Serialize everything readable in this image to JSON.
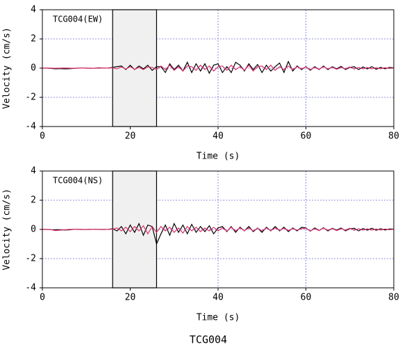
{
  "chart_data": [
    {
      "type": "line",
      "label": "TCG004(EW)",
      "xlabel": "Time (s)",
      "ylabel": "Velocity (cm/s)",
      "xlim": [
        0,
        80
      ],
      "ylim": [
        -4,
        4
      ],
      "xticks": [
        0,
        20,
        40,
        60,
        80
      ],
      "yticks": [
        -4,
        -2,
        0,
        2,
        4
      ],
      "grid": true,
      "shaded_span": [
        16,
        26
      ],
      "x": [
        0,
        1,
        2,
        3,
        4,
        5,
        6,
        7,
        8,
        9,
        10,
        11,
        12,
        13,
        14,
        15,
        16,
        17,
        18,
        19,
        20,
        21,
        22,
        23,
        24,
        25,
        26,
        27,
        28,
        29,
        30,
        31,
        32,
        33,
        34,
        35,
        36,
        37,
        38,
        39,
        40,
        41,
        42,
        43,
        44,
        45,
        46,
        47,
        48,
        49,
        50,
        51,
        52,
        53,
        54,
        55,
        56,
        57,
        58,
        59,
        60,
        61,
        62,
        63,
        64,
        65,
        66,
        67,
        68,
        69,
        70,
        71,
        72,
        73,
        74,
        75,
        76,
        77,
        78,
        79,
        80
      ],
      "series": [
        {
          "color": "#000000",
          "values": [
            0,
            0,
            -0.02,
            -0.05,
            -0.03,
            -0.05,
            -0.04,
            -0.02,
            0,
            0.01,
            0,
            -0.01,
            0,
            0.02,
            0,
            0.01,
            0.05,
            0.1,
            0.15,
            -0.1,
            0.2,
            -0.1,
            0.15,
            -0.05,
            0.2,
            -0.15,
            0.1,
            0.1,
            -0.3,
            0.3,
            -0.1,
            0.2,
            -0.2,
            0.4,
            -0.3,
            0.3,
            -0.2,
            0.3,
            -0.35,
            0.2,
            0.3,
            -0.3,
            0.1,
            -0.3,
            0.4,
            0.2,
            -0.2,
            0.3,
            -0.1,
            0.25,
            -0.3,
            0.2,
            -0.2,
            0.1,
            0.35,
            -0.3,
            0.45,
            -0.2,
            0.15,
            -0.1,
            0.1,
            -0.15,
            0.1,
            -0.1,
            0.15,
            -0.1,
            0.1,
            -0.05,
            0.12,
            -0.1,
            0.05,
            0.1,
            -0.1,
            0.08,
            -0.05,
            0.1,
            -0.08,
            0.05,
            -0.05,
            0.05,
            0.02
          ]
        },
        {
          "color": "#e0306a",
          "values": [
            0,
            0.01,
            0,
            -0.01,
            0,
            0.01,
            0,
            -0.01,
            0,
            0.01,
            0,
            0,
            -0.01,
            0,
            0.01,
            0,
            0.02,
            -0.05,
            0.08,
            -0.06,
            0.1,
            -0.08,
            0.05,
            -0.1,
            0.08,
            0.05,
            -0.1,
            0.15,
            -0.1,
            0.2,
            -0.15,
            0.1,
            -0.2,
            0.15,
            0.1,
            -0.15,
            0.2,
            -0.1,
            0.15,
            -0.2,
            0.1,
            0.15,
            -0.15,
            0.2,
            -0.1,
            0.1,
            -0.15,
            0.2,
            -0.2,
            0.1,
            0.15,
            -0.1,
            0.2,
            -0.15,
            0.1,
            -0.1,
            0.15,
            -0.1,
            0.1,
            -0.05,
            0.08,
            -0.1,
            0.05,
            -0.08,
            0.1,
            -0.05,
            0.06,
            -0.08,
            0.05,
            -0.05,
            0.08,
            -0.06,
            0.05,
            -0.05,
            0.04,
            -0.05,
            0.03,
            -0.04,
            0.03,
            -0.02,
            0.01
          ]
        }
      ]
    },
    {
      "type": "line",
      "label": "TCG004(NS)",
      "xlabel": "Time (s)",
      "ylabel": "Velocity (cm/s)",
      "xlim": [
        0,
        80
      ],
      "ylim": [
        -4,
        4
      ],
      "xticks": [
        0,
        20,
        40,
        60,
        80
      ],
      "yticks": [
        -4,
        -2,
        0,
        2,
        4
      ],
      "grid": true,
      "shaded_span": [
        16,
        26
      ],
      "x": [
        0,
        1,
        2,
        3,
        4,
        5,
        6,
        7,
        8,
        9,
        10,
        11,
        12,
        13,
        14,
        15,
        16,
        17,
        18,
        19,
        20,
        21,
        22,
        23,
        24,
        25,
        26,
        27,
        28,
        29,
        30,
        31,
        32,
        33,
        34,
        35,
        36,
        37,
        38,
        39,
        40,
        41,
        42,
        43,
        44,
        45,
        46,
        47,
        48,
        49,
        50,
        51,
        52,
        53,
        54,
        55,
        56,
        57,
        58,
        59,
        60,
        61,
        62,
        63,
        64,
        65,
        66,
        67,
        68,
        69,
        70,
        71,
        72,
        73,
        74,
        75,
        76,
        77,
        78,
        79,
        80
      ],
      "series": [
        {
          "color": "#000000",
          "values": [
            0,
            0,
            -0.02,
            -0.03,
            -0.02,
            -0.04,
            -0.03,
            0,
            0.01,
            0,
            -0.01,
            0,
            0.01,
            0,
            0,
            0.01,
            0.05,
            -0.1,
            0.2,
            -0.3,
            0.3,
            -0.2,
            0.4,
            -0.4,
            0.3,
            0.2,
            -1.0,
            -0.3,
            0.3,
            -0.4,
            0.4,
            -0.2,
            0.3,
            -0.3,
            0.35,
            -0.2,
            0.2,
            -0.15,
            0.25,
            -0.3,
            0.1,
            0.2,
            -0.15,
            0.2,
            -0.2,
            0.15,
            -0.1,
            0.2,
            -0.15,
            0.1,
            -0.2,
            0.15,
            -0.1,
            0.2,
            -0.1,
            0.15,
            -0.15,
            0.1,
            -0.1,
            0.15,
            0.1,
            -0.12,
            0.1,
            -0.08,
            0.12,
            -0.1,
            0.08,
            -0.05,
            0.1,
            -0.1,
            0.05,
            0.08,
            -0.1,
            0.06,
            -0.05,
            0.08,
            -0.06,
            0.05,
            -0.04,
            0.03,
            0.02
          ]
        },
        {
          "color": "#e0306a",
          "values": [
            0,
            0,
            -0.02,
            -0.08,
            -0.05,
            -0.03,
            0,
            0.01,
            0,
            -0.01,
            0,
            0.01,
            0,
            0,
            -0.01,
            0,
            0.02,
            0.1,
            -0.1,
            0.15,
            -0.15,
            0.2,
            -0.1,
            0.25,
            -0.3,
            0.2,
            -0.2,
            0.2,
            -0.1,
            0.15,
            -0.2,
            0.1,
            -0.25,
            0.2,
            -0.1,
            0.15,
            -0.15,
            0.1,
            -0.1,
            0.15,
            -0.1,
            0.1,
            -0.12,
            0.15,
            -0.1,
            0.1,
            -0.08,
            0.1,
            -0.1,
            0.08,
            -0.1,
            0.1,
            -0.08,
            0.1,
            -0.06,
            0.08,
            -0.08,
            0.06,
            -0.05,
            0.05,
            0.08,
            -0.1,
            0.05,
            -0.08,
            0.1,
            -0.05,
            0.06,
            -0.08,
            0.05,
            -0.05,
            0.08,
            -0.06,
            0.05,
            -0.05,
            0.04,
            -0.05,
            0.03,
            -0.04,
            0.03,
            -0.02,
            0.01
          ]
        }
      ]
    }
  ],
  "caption": "TCG004"
}
